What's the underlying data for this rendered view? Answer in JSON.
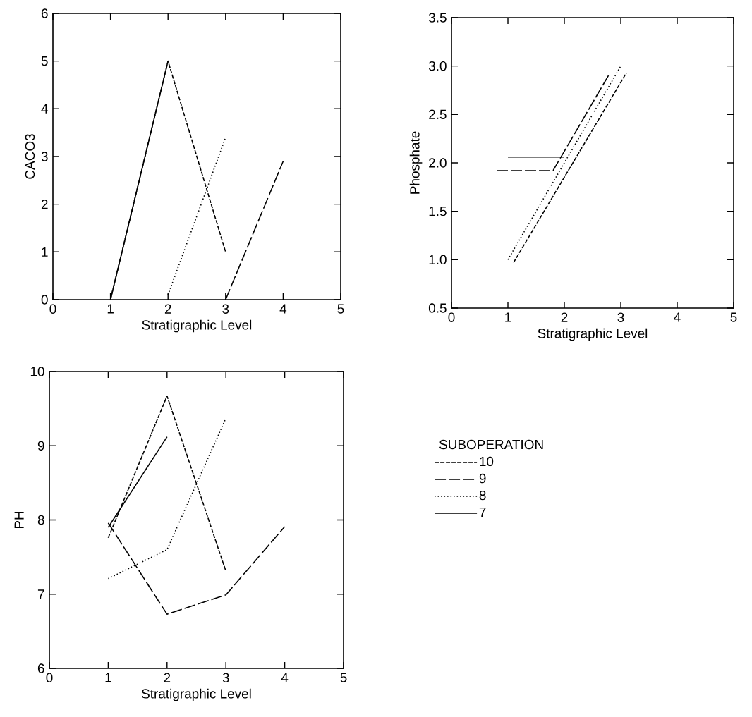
{
  "chart_data": [
    {
      "type": "line",
      "xlabel": "Stratigraphic Level",
      "ylabel": "CACO3",
      "xlim": [
        0,
        5
      ],
      "ylim": [
        0,
        6
      ],
      "xticks": [
        0,
        1,
        2,
        3,
        4,
        5
      ],
      "yticks": [
        0,
        1,
        2,
        3,
        4,
        5,
        6
      ],
      "series": [
        {
          "color": "#000000",
          "line_style": "dashed",
          "x": [
            1,
            2,
            3
          ],
          "values": [
            0,
            5,
            1
          ]
        },
        {
          "color": "#000000",
          "line_style": "dashed",
          "x": [
            3,
            4
          ],
          "values": [
            0,
            2.9
          ]
        },
        {
          "color": "#000000",
          "line_style": "dotted",
          "x": [
            2,
            3
          ],
          "values": [
            0.1,
            3.4
          ]
        },
        {
          "color": "#000000",
          "line_style": "solid",
          "x": [
            1,
            2
          ],
          "values": [
            0,
            5
          ]
        }
      ]
    },
    {
      "type": "line",
      "xlabel": "Stratigraphic Level",
      "ylabel": "Phosphate",
      "xlim": [
        0,
        5
      ],
      "ylim": [
        0.5,
        3.5
      ],
      "xticks": [
        0,
        1,
        2,
        3,
        4,
        5
      ],
      "yticks": [
        0.5,
        {
          "value": 1.0,
          "label": "1.0"
        },
        1.5,
        {
          "value": 2.0,
          "label": "2.0"
        },
        2.5,
        {
          "value": 3.0,
          "label": "3.0"
        },
        3.5
      ],
      "series": [
        {
          "color": "#000000",
          "line_style": "dashed",
          "x": [
            1.1,
            3.1
          ],
          "values": [
            0.97,
            2.93
          ]
        },
        {
          "color": "#000000",
          "line_style": "dashed",
          "x": [
            0.8,
            1.8,
            2.8
          ],
          "values": [
            1.92,
            1.92,
            2.92
          ]
        },
        {
          "color": "#000000",
          "line_style": "dotted",
          "x": [
            1,
            3
          ],
          "values": [
            1.0,
            3.0
          ]
        },
        {
          "color": "#000000",
          "line_style": "solid",
          "x": [
            1,
            2
          ],
          "values": [
            2.06,
            2.06
          ]
        }
      ]
    },
    {
      "type": "line",
      "xlabel": "Stratigraphic Level",
      "ylabel": "PH",
      "xlim": [
        0,
        5
      ],
      "ylim": [
        6,
        10
      ],
      "xticks": [
        0,
        1,
        2,
        3,
        4,
        5
      ],
      "yticks": [
        6,
        7,
        8,
        9,
        10
      ],
      "legend": "right",
      "legend_title": "SUBOPERATION",
      "series": [
        {
          "name": "10",
          "color": "#000000",
          "line_style": "dashed",
          "x": [
            1,
            2,
            3
          ],
          "values": [
            7.76,
            9.67,
            7.31
          ]
        },
        {
          "name": "9",
          "color": "#000000",
          "line_style": "dashed",
          "x": [
            1,
            2,
            3,
            4
          ],
          "values": [
            7.96,
            6.73,
            6.99,
            7.91
          ]
        },
        {
          "name": "8",
          "color": "#000000",
          "line_style": "dotted",
          "x": [
            1,
            2,
            3
          ],
          "values": [
            7.21,
            7.6,
            9.37
          ]
        },
        {
          "name": "7",
          "color": "#000000",
          "line_style": "solid",
          "x": [
            1,
            2
          ],
          "values": [
            7.9,
            9.12
          ]
        }
      ]
    }
  ]
}
